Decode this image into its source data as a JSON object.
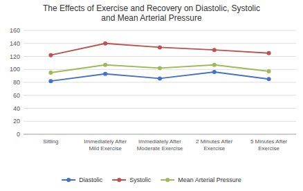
{
  "chart_data": {
    "type": "line",
    "title": "The Effects of Exercise and Recovery on Diastolic, Systolic\nand Mean Arterial Pressure",
    "categories": [
      "Sitting",
      "Immediately After\nMild Exercise",
      "Immediately After\nModerate Exercise",
      "2 Minutes After\nExercise",
      "5 Minutes After\nExercise"
    ],
    "series": [
      {
        "name": "Diastolic",
        "color": "#4472c4",
        "marker": "circle",
        "values": [
          82,
          93,
          86,
          96,
          85
        ]
      },
      {
        "name": "Systolic",
        "color": "#c0504d",
        "marker": "circle",
        "values": [
          122,
          140,
          134,
          130,
          125
        ]
      },
      {
        "name": "Mean Arterial Pressure",
        "color": "#9bbb59",
        "marker": "circle",
        "values": [
          95,
          107,
          102,
          107,
          97
        ]
      }
    ],
    "ylim": [
      0,
      160
    ],
    "yticks": [
      0,
      20,
      40,
      60,
      80,
      100,
      120,
      140,
      160
    ],
    "grid": true,
    "legend": "bottom"
  }
}
